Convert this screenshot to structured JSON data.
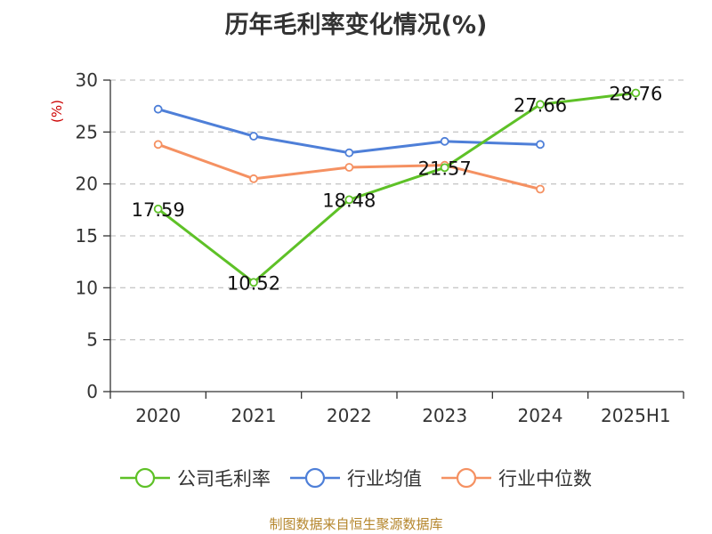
{
  "title": "历年毛利率变化情况(%)",
  "source_note": "制图数据来自恒生聚源数据库",
  "chart_data": {
    "type": "line",
    "title": "历年毛利率变化情况(%)",
    "unit_label": "(%)",
    "categories": [
      "2020",
      "2021",
      "2022",
      "2023",
      "2024",
      "2025H1"
    ],
    "ylim": [
      0,
      30
    ],
    "yticks": [
      0,
      5,
      10,
      15,
      20,
      25,
      30
    ],
    "grid": true,
    "legend_position": "bottom",
    "series": [
      {
        "name": "公司毛利率",
        "color": "#5ec127",
        "values": [
          17.59,
          10.52,
          18.48,
          21.57,
          27.66,
          28.76
        ],
        "labels": [
          "17.59",
          "10.52",
          "18.48",
          "21.57",
          "27.66",
          "28.76"
        ]
      },
      {
        "name": "行业均值",
        "color": "#4e7fd8",
        "values": [
          27.2,
          24.6,
          23.0,
          24.1,
          23.8,
          null
        ],
        "labels": []
      },
      {
        "name": "行业中位数",
        "color": "#f59162",
        "values": [
          23.8,
          20.5,
          21.6,
          21.8,
          19.5,
          null
        ],
        "labels": []
      }
    ]
  }
}
